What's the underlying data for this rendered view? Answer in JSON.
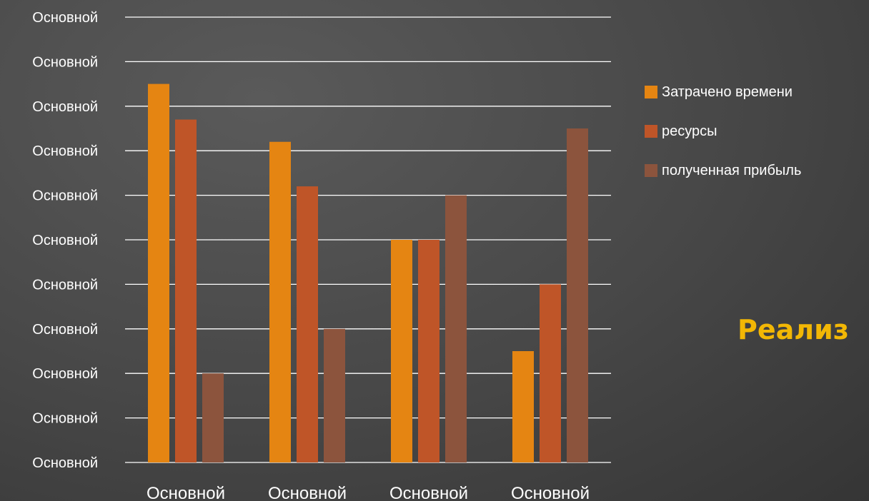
{
  "chart_data": {
    "type": "bar",
    "categories": [
      "Основной",
      "Основной",
      "Основной",
      "Основной"
    ],
    "y_tick_labels": [
      "Основной",
      "Основной",
      "Основной",
      "Основной",
      "Основной",
      "Основной",
      "Основной",
      "Основной",
      "Основной",
      "Основной",
      "Основной"
    ],
    "ylim": [
      0,
      10
    ],
    "grid": true,
    "legend_position": "right",
    "series": [
      {
        "name": "Затрачено времени",
        "values": [
          8.5,
          7.2,
          5.0,
          2.5
        ],
        "color": "#e58512"
      },
      {
        "name": "ресурсы",
        "values": [
          7.7,
          6.2,
          5.0,
          4.0
        ],
        "color": "#bf5528"
      },
      {
        "name": "полученная прибыль",
        "values": [
          2.0,
          3.0,
          6.0,
          7.5
        ],
        "color": "#8c543d"
      }
    ]
  },
  "side_title": {
    "text": "Реализ",
    "color": "#f2b705"
  }
}
